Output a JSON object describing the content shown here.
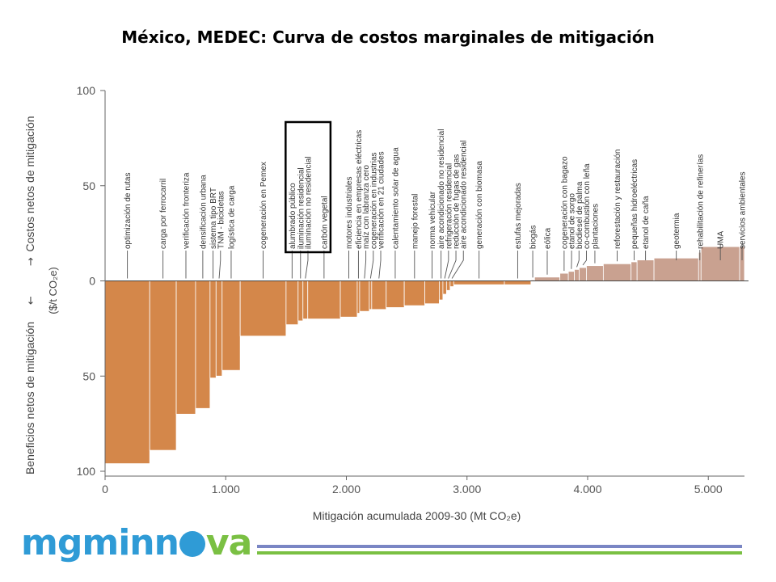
{
  "title": "México, MEDEC: Curva de costos marginales de mitigación",
  "logo": {
    "part1": "mgminn",
    "part2": "va"
  },
  "chart_data": {
    "type": "bar",
    "xlabel": "Mitigación acumulada 2009-30 (Mt CO₂e)",
    "ylabel_top": "Costos netos de mitigación",
    "ylabel_bottom": "Beneficios netos de mitigación",
    "ylabel_unit": "($/t CO₂e)",
    "arrow_up": "→",
    "arrow_down": "←",
    "xlim": [
      0,
      5300
    ],
    "ylim": [
      -100,
      100
    ],
    "x_ticks": [
      {
        "value": 0,
        "label": "0"
      },
      {
        "value": 1000,
        "label": "1.000"
      },
      {
        "value": 2000,
        "label": "2.000"
      },
      {
        "value": 3000,
        "label": "3.000"
      },
      {
        "value": 4000,
        "label": "4.000"
      },
      {
        "value": 5000,
        "label": "5.000"
      }
    ],
    "y_ticks": [
      {
        "value": 100,
        "label": "100"
      },
      {
        "value": 50,
        "label": "50"
      },
      {
        "value": 0,
        "label": "0"
      },
      {
        "value": -50,
        "label": "50"
      },
      {
        "value": -100,
        "label": "100"
      }
    ],
    "colors": {
      "benefit": "#d4874a",
      "cost": "#c9a190",
      "highlight": "#000000"
    },
    "highlight_labels": [
      "alumbrado público",
      "carbón vegetal"
    ],
    "bars": [
      {
        "label": "optimización de rutas",
        "x0": 0,
        "x1": 370,
        "value": -96
      },
      {
        "label": "carga por ferrocarril",
        "x0": 370,
        "x1": 590,
        "value": -89
      },
      {
        "label": "verificación fronteriza",
        "x0": 590,
        "x1": 750,
        "value": -70
      },
      {
        "label": "densificación urbana",
        "x0": 750,
        "x1": 870,
        "value": -67
      },
      {
        "label": "sistema tipo BRT",
        "x0": 870,
        "x1": 920,
        "value": -51
      },
      {
        "label": "TNM - bicicletas",
        "x0": 920,
        "x1": 970,
        "value": -50
      },
      {
        "label": "logística de carga",
        "x0": 970,
        "x1": 1120,
        "value": -47
      },
      {
        "label": "cogeneración en Pemex",
        "x0": 1120,
        "x1": 1500,
        "value": -29
      },
      {
        "label": "alumbrado público",
        "x0": 1500,
        "x1": 1600,
        "value": -23
      },
      {
        "label": "iluminación residencial",
        "x0": 1600,
        "x1": 1640,
        "value": -21
      },
      {
        "label": "iluminación no residencial",
        "x0": 1640,
        "x1": 1680,
        "value": -20
      },
      {
        "label": "carbón vegetal",
        "x0": 1680,
        "x1": 1950,
        "value": -20
      },
      {
        "label": "motores industriales",
        "x0": 1950,
        "x1": 2090,
        "value": -19
      },
      {
        "label": "eficiencia en empresas eléctricas",
        "x0": 2090,
        "x1": 2110,
        "value": -17
      },
      {
        "label": "maíz con labranza cero",
        "x0": 2110,
        "x1": 2190,
        "value": -16
      },
      {
        "label": "cogeneración en industrias",
        "x0": 2190,
        "x1": 2210,
        "value": -15
      },
      {
        "label": "verificación en 21 ciudades",
        "x0": 2210,
        "x1": 2330,
        "value": -15
      },
      {
        "label": "calentamiento solar de agua",
        "x0": 2330,
        "x1": 2480,
        "value": -14
      },
      {
        "label": "manejo forestal",
        "x0": 2480,
        "x1": 2650,
        "value": -13
      },
      {
        "label": "norma vehicular",
        "x0": 2650,
        "x1": 2770,
        "value": -12
      },
      {
        "label": "aire acondicionado no residencial",
        "x0": 2770,
        "x1": 2800,
        "value": -10
      },
      {
        "label": "refrigeración residencial",
        "x0": 2800,
        "x1": 2830,
        "value": -7
      },
      {
        "label": "reducción de fugas de gas",
        "x0": 2830,
        "x1": 2860,
        "value": -5
      },
      {
        "label": "aire acondicionado residencial",
        "x0": 2860,
        "x1": 2890,
        "value": -3
      },
      {
        "label": "generación con biomasa",
        "x0": 2890,
        "x1": 3310,
        "value": -2
      },
      {
        "label": "estufas mejoradas",
        "x0": 3310,
        "x1": 3530,
        "value": -2
      },
      {
        "label": "biogás",
        "x0": 3530,
        "x1": 3560,
        "value": 0.5
      },
      {
        "label": "eólica",
        "x0": 3560,
        "x1": 3770,
        "value": 2
      },
      {
        "label": "cogeneración con bagazo",
        "x0": 3770,
        "x1": 3840,
        "value": 4
      },
      {
        "label": "etanol de sorgo",
        "x0": 3840,
        "x1": 3890,
        "value": 5
      },
      {
        "label": "biodiesel de palma",
        "x0": 3890,
        "x1": 3930,
        "value": 6
      },
      {
        "label": "co-combustión con leña",
        "x0": 3930,
        "x1": 3990,
        "value": 7
      },
      {
        "label": "plantaciones",
        "x0": 3990,
        "x1": 4130,
        "value": 8
      },
      {
        "label": "reforestación y restauración",
        "x0": 4130,
        "x1": 4360,
        "value": 9
      },
      {
        "label": "pequeñas hidroeléctricas",
        "x0": 4360,
        "x1": 4410,
        "value": 10
      },
      {
        "label": "etanol de caña",
        "x0": 4410,
        "x1": 4550,
        "value": 11
      },
      {
        "label": "geotermia",
        "x0": 4550,
        "x1": 4920,
        "value": 12
      },
      {
        "label": "rehabilitación de refinerías",
        "x0": 4920,
        "x1": 4940,
        "value": 15
      },
      {
        "label": "UMA",
        "x0": 4940,
        "x1": 5260,
        "value": 18
      },
      {
        "label": "servicios ambientales",
        "x0": 5260,
        "x1": 5300,
        "value": 18
      }
    ]
  }
}
